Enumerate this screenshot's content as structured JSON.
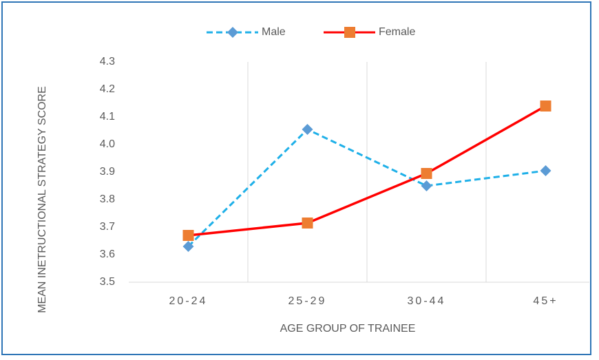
{
  "chart_data": {
    "type": "line",
    "x_label": "AGE GROUP OF TRAINEE",
    "y_label": "MEAN INETRUCTIONAL STRATEGY SCORE",
    "categories": [
      "20-24",
      "25-29",
      "30-44",
      "45+"
    ],
    "series": [
      {
        "name": "Male",
        "color": "#1fb0e8",
        "marker_color": "#5b9bd5",
        "marker": "diamond",
        "line_style": "dashed",
        "values": [
          3.63,
          4.055,
          3.85,
          3.905
        ]
      },
      {
        "name": "Female",
        "color": "#ff0000",
        "marker_color": "#ed7d31",
        "marker": "square",
        "line_style": "solid",
        "values": [
          3.67,
          3.715,
          3.895,
          4.14
        ]
      }
    ],
    "ylim": [
      3.5,
      4.3
    ],
    "yticks": [
      3.5,
      3.6,
      3.7,
      3.8,
      3.9,
      {
        "value": 4,
        "label": "4.0"
      },
      4.1,
      4.2,
      4.3
    ],
    "grid": "x",
    "legend": "top"
  }
}
